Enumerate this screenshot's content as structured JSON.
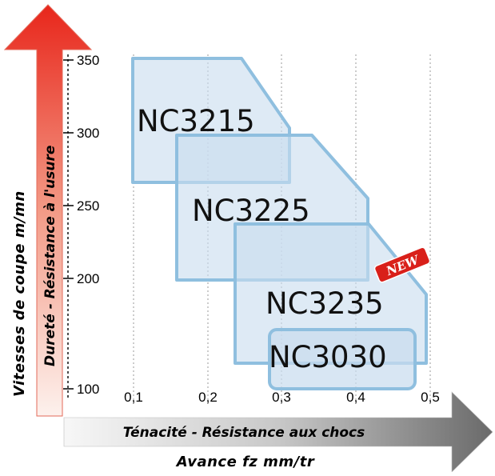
{
  "y_axis": {
    "title": "Vitesses de coupe  m/mn",
    "arrow_label": "Dureté  -  Résistance à l'usure",
    "ticks": [
      "350",
      "300",
      "250",
      "200",
      "100"
    ]
  },
  "x_axis": {
    "title": "Avance fz  mm/tr",
    "arrow_label": "Ténacité  -  Résistance aux chocs",
    "ticks": [
      "0,1",
      "0,2",
      "0,3",
      "0,4",
      "0,5"
    ]
  },
  "grades": [
    {
      "name": "NC3215"
    },
    {
      "name": "NC3225"
    },
    {
      "name": "NC3235"
    },
    {
      "name": "NC3030"
    }
  ],
  "new_badge": "NEW",
  "colors": {
    "box_fill": "#c9ddef",
    "box_stroke": "#8fbfdf",
    "up_arrow_top": "#e8261b",
    "up_arrow_bottom": "#fbe9e4",
    "right_arrow_left": "#f2f2f2",
    "right_arrow_right": "#6e6e6e",
    "badge": "#d9201a"
  }
}
